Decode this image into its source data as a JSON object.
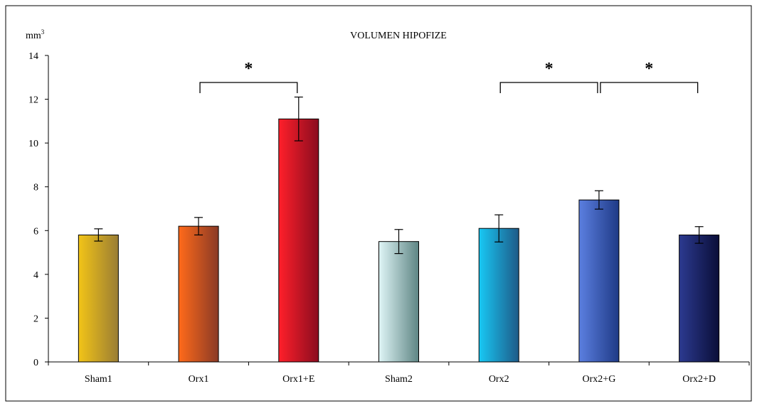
{
  "chart_data": {
    "type": "bar",
    "title": "VOLUMEN HIPOFIZE",
    "ylabel": "mm",
    "ylabel_superscript": "3",
    "ylim": [
      0,
      14
    ],
    "yticks": [
      0,
      2,
      4,
      6,
      8,
      10,
      12,
      14
    ],
    "categories": [
      "Sham1",
      "Orx1",
      "Orx1+E",
      "Sham2",
      "Orx2",
      "Orx2+G",
      "Orx2+D"
    ],
    "values": [
      5.8,
      6.2,
      11.1,
      5.5,
      6.1,
      7.4,
      5.8
    ],
    "errors": [
      0.28,
      0.4,
      1.0,
      0.55,
      0.62,
      0.42,
      0.38
    ],
    "colors": [
      [
        "#f2c417",
        "#9a7d34"
      ],
      [
        "#ff6a1a",
        "#8a3a26"
      ],
      [
        "#ff1f2a",
        "#8a0c1f"
      ],
      [
        "#dff5f6",
        "#5e8584"
      ],
      [
        "#18c8f4",
        "#1e5a88"
      ],
      [
        "#5b7fe0",
        "#1f3a86"
      ],
      [
        "#2c3a90",
        "#0a0e38"
      ]
    ],
    "significance": [
      {
        "from": 1,
        "to": 2,
        "label": "*"
      },
      {
        "from": 4,
        "to": 5,
        "label": "*"
      },
      {
        "from": 5,
        "to": 6,
        "label": "*"
      }
    ],
    "grid": false,
    "legend": "none"
  }
}
